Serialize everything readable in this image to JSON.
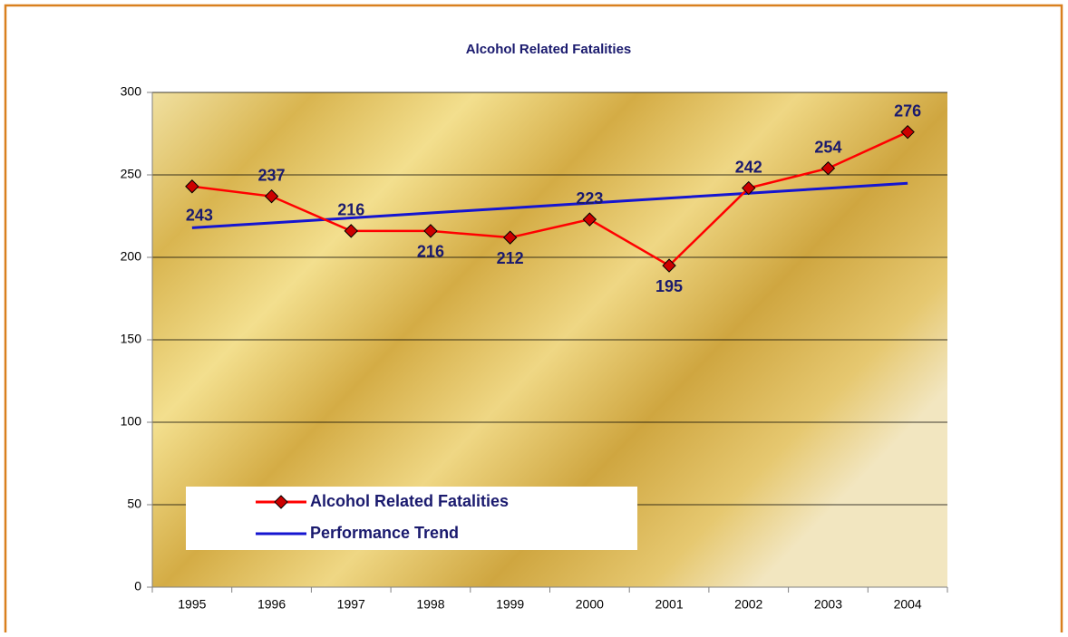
{
  "chart_data": {
    "type": "line",
    "title": "Alcohol Related Fatalities",
    "categories": [
      "1995",
      "1996",
      "1997",
      "1998",
      "1999",
      "2000",
      "2001",
      "2002",
      "2003",
      "2004"
    ],
    "series": [
      {
        "name": "Alcohol Related Fatalities",
        "color": "#ff0000",
        "marker_color": "#cc0000",
        "values": [
          243,
          237,
          216,
          216,
          212,
          223,
          195,
          242,
          254,
          276
        ]
      },
      {
        "name": "Performance Trend",
        "color": "#1515d0",
        "values": [
          217.9,
          220.9,
          223.9,
          226.9,
          229.9,
          232.9,
          235.9,
          238.9,
          241.9,
          244.9
        ]
      }
    ],
    "ylim": [
      0,
      300
    ],
    "yticks": [
      0,
      50,
      100,
      150,
      200,
      250,
      300
    ],
    "grid": true,
    "legend": "bottom-left"
  }
}
